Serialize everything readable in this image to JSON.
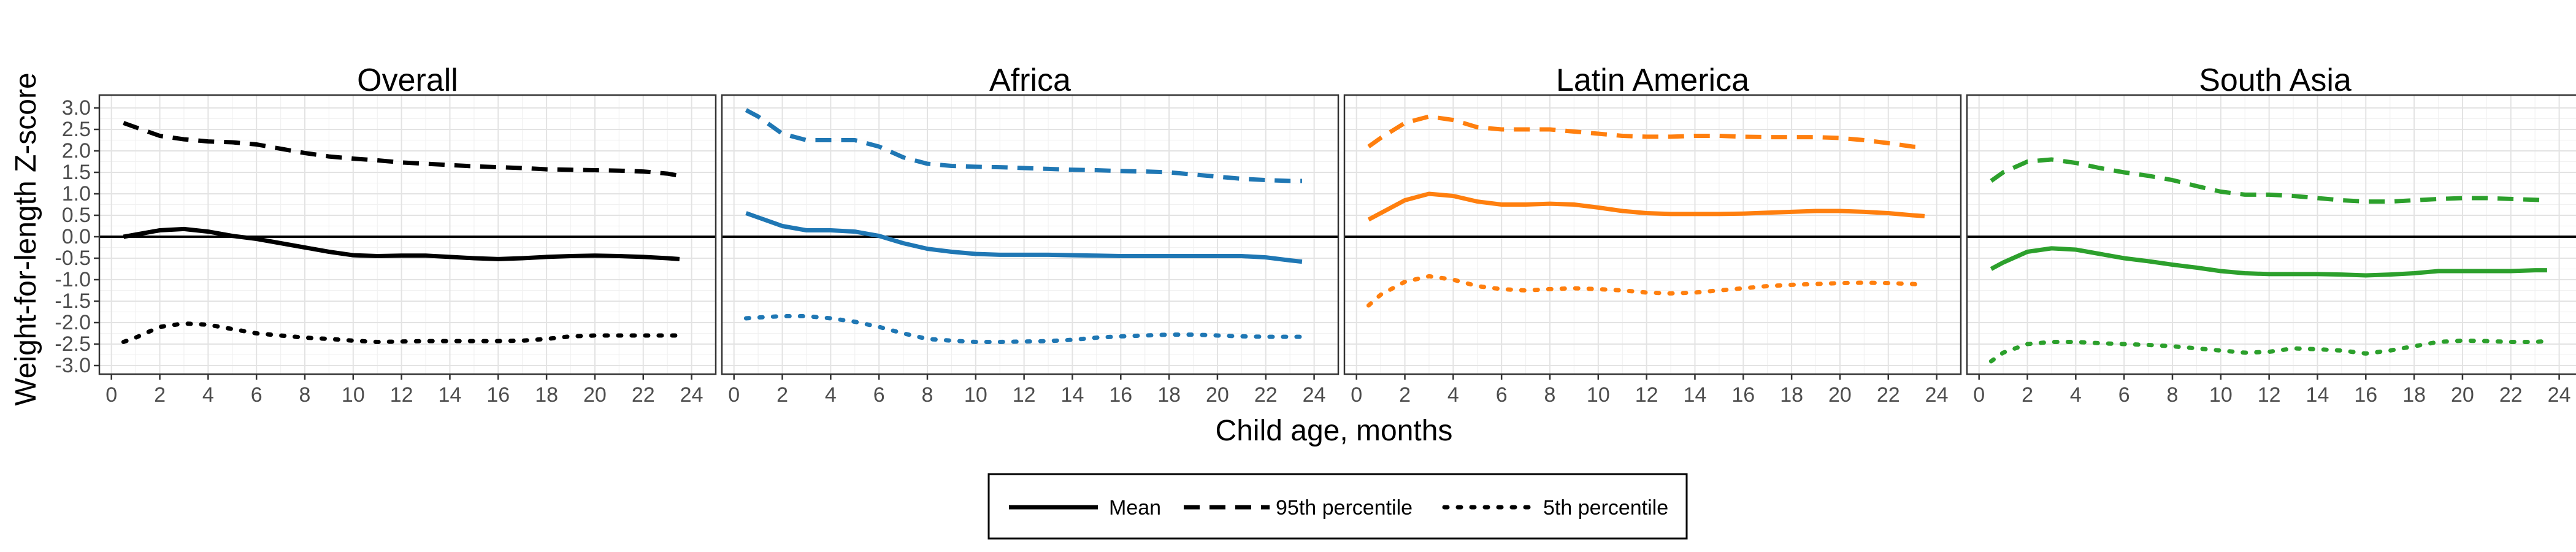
{
  "chart_data": {
    "type": "line",
    "ylabel": "Weight-for-length Z-score",
    "xlabel": "Child age, months",
    "xlim": [
      -0.5,
      25
    ],
    "ylim": [
      -3.2,
      3.3
    ],
    "x_ticks": [
      0,
      2,
      4,
      6,
      8,
      10,
      12,
      14,
      16,
      18,
      20,
      22,
      24
    ],
    "y_ticks": [
      -3.0,
      -2.5,
      -2.0,
      -1.5,
      -1.0,
      -0.5,
      0.0,
      0.5,
      1.0,
      1.5,
      2.0,
      2.5,
      3.0
    ],
    "y_tick_labels": [
      "-3.0",
      "-2.5",
      "-2.0",
      "-1.5",
      "-1.0",
      "-0.5",
      "0.0",
      "0.5",
      "1.0",
      "1.5",
      "2.0",
      "2.5",
      "3.0"
    ],
    "reference_line_y": 0,
    "grid": true,
    "legend_position": "bottom",
    "legend": [
      {
        "label": "Mean",
        "style": "solid"
      },
      {
        "label": "95th percentile",
        "style": "dashed"
      },
      {
        "label": "5th percentile",
        "style": "dotted"
      }
    ],
    "panels": [
      {
        "title": "Overall",
        "color": "#000000",
        "x": [
          0.5,
          1,
          2,
          3,
          4,
          5,
          6,
          7,
          8,
          9,
          10,
          11,
          12,
          13,
          14,
          15,
          16,
          17,
          18,
          19,
          20,
          21,
          22,
          23,
          23.5
        ],
        "series": [
          {
            "name": "Mean",
            "style": "solid",
            "values": [
              0.0,
              0.05,
              0.15,
              0.18,
              0.12,
              0.02,
              -0.05,
              -0.15,
              -0.25,
              -0.35,
              -0.43,
              -0.45,
              -0.44,
              -0.44,
              -0.47,
              -0.5,
              -0.52,
              -0.5,
              -0.47,
              -0.45,
              -0.44,
              -0.45,
              -0.47,
              -0.5,
              -0.52
            ]
          },
          {
            "name": "95th percentile",
            "style": "dashed",
            "values": [
              2.65,
              2.55,
              2.35,
              2.27,
              2.22,
              2.2,
              2.15,
              2.05,
              1.95,
              1.87,
              1.82,
              1.78,
              1.73,
              1.7,
              1.67,
              1.64,
              1.62,
              1.6,
              1.57,
              1.56,
              1.55,
              1.54,
              1.52,
              1.47,
              1.42
            ]
          },
          {
            "name": "5th percentile",
            "style": "dotted",
            "values": [
              -2.45,
              -2.35,
              -2.1,
              -2.02,
              -2.05,
              -2.15,
              -2.25,
              -2.3,
              -2.35,
              -2.38,
              -2.42,
              -2.45,
              -2.44,
              -2.43,
              -2.43,
              -2.43,
              -2.43,
              -2.42,
              -2.38,
              -2.32,
              -2.3,
              -2.3,
              -2.3,
              -2.3,
              -2.3
            ]
          }
        ]
      },
      {
        "title": "Africa",
        "color": "#1f77b4",
        "x": [
          0.5,
          1,
          2,
          3,
          4,
          5,
          6,
          7,
          8,
          9,
          10,
          11,
          12,
          13,
          14,
          15,
          16,
          17,
          18,
          19,
          20,
          21,
          22,
          23,
          23.5
        ],
        "series": [
          {
            "name": "Mean",
            "style": "solid",
            "values": [
              0.55,
              0.45,
              0.25,
              0.15,
              0.15,
              0.12,
              0.02,
              -0.15,
              -0.28,
              -0.35,
              -0.4,
              -0.42,
              -0.42,
              -0.42,
              -0.43,
              -0.44,
              -0.45,
              -0.45,
              -0.45,
              -0.45,
              -0.45,
              -0.45,
              -0.48,
              -0.55,
              -0.58
            ]
          },
          {
            "name": "95th percentile",
            "style": "dashed",
            "values": [
              2.95,
              2.8,
              2.4,
              2.25,
              2.25,
              2.25,
              2.1,
              1.85,
              1.7,
              1.65,
              1.63,
              1.62,
              1.6,
              1.58,
              1.56,
              1.55,
              1.53,
              1.52,
              1.5,
              1.45,
              1.4,
              1.35,
              1.32,
              1.3,
              1.3
            ]
          },
          {
            "name": "5th percentile",
            "style": "dotted",
            "values": [
              -1.9,
              -1.88,
              -1.85,
              -1.85,
              -1.9,
              -1.98,
              -2.1,
              -2.25,
              -2.38,
              -2.42,
              -2.45,
              -2.45,
              -2.44,
              -2.43,
              -2.4,
              -2.35,
              -2.32,
              -2.3,
              -2.28,
              -2.28,
              -2.3,
              -2.32,
              -2.33,
              -2.33,
              -2.33
            ]
          }
        ]
      },
      {
        "title": "Latin America",
        "color": "#ff7f0e",
        "x": [
          0.5,
          1,
          2,
          3,
          4,
          5,
          6,
          7,
          8,
          9,
          10,
          11,
          12,
          13,
          14,
          15,
          16,
          17,
          18,
          19,
          20,
          21,
          22,
          23,
          23.5
        ],
        "series": [
          {
            "name": "Mean",
            "style": "solid",
            "values": [
              0.4,
              0.55,
              0.85,
              1.0,
              0.95,
              0.82,
              0.75,
              0.75,
              0.77,
              0.75,
              0.68,
              0.6,
              0.55,
              0.53,
              0.53,
              0.53,
              0.54,
              0.56,
              0.58,
              0.6,
              0.6,
              0.58,
              0.55,
              0.5,
              0.48
            ]
          },
          {
            "name": "95th percentile",
            "style": "dashed",
            "values": [
              2.1,
              2.3,
              2.65,
              2.8,
              2.72,
              2.55,
              2.5,
              2.5,
              2.5,
              2.45,
              2.4,
              2.35,
              2.33,
              2.33,
              2.35,
              2.35,
              2.33,
              2.32,
              2.32,
              2.32,
              2.3,
              2.25,
              2.18,
              2.1,
              2.08
            ]
          },
          {
            "name": "5th percentile",
            "style": "dotted",
            "values": [
              -1.6,
              -1.35,
              -1.05,
              -0.92,
              -1.0,
              -1.15,
              -1.22,
              -1.25,
              -1.22,
              -1.2,
              -1.22,
              -1.25,
              -1.3,
              -1.32,
              -1.3,
              -1.25,
              -1.2,
              -1.15,
              -1.12,
              -1.1,
              -1.08,
              -1.07,
              -1.08,
              -1.1,
              -1.12
            ]
          }
        ]
      },
      {
        "title": "South Asia",
        "color": "#2ca02c",
        "x": [
          0.5,
          1,
          2,
          3,
          4,
          5,
          6,
          7,
          8,
          9,
          10,
          11,
          12,
          13,
          14,
          15,
          16,
          17,
          18,
          19,
          20,
          21,
          22,
          23,
          23.5
        ],
        "series": [
          {
            "name": "Mean",
            "style": "solid",
            "values": [
              -0.75,
              -0.6,
              -0.35,
              -0.27,
              -0.3,
              -0.4,
              -0.5,
              -0.57,
              -0.65,
              -0.72,
              -0.8,
              -0.85,
              -0.87,
              -0.87,
              -0.87,
              -0.88,
              -0.9,
              -0.88,
              -0.85,
              -0.8,
              -0.8,
              -0.8,
              -0.8,
              -0.78,
              -0.78
            ]
          },
          {
            "name": "95th percentile",
            "style": "dashed",
            "values": [
              1.3,
              1.5,
              1.75,
              1.8,
              1.72,
              1.6,
              1.5,
              1.42,
              1.32,
              1.18,
              1.05,
              0.98,
              0.98,
              0.95,
              0.9,
              0.85,
              0.82,
              0.82,
              0.85,
              0.88,
              0.9,
              0.9,
              0.88,
              0.86,
              0.85
            ]
          },
          {
            "name": "5th percentile",
            "style": "dotted",
            "values": [
              -2.9,
              -2.7,
              -2.5,
              -2.45,
              -2.45,
              -2.48,
              -2.5,
              -2.52,
              -2.55,
              -2.6,
              -2.65,
              -2.7,
              -2.68,
              -2.6,
              -2.62,
              -2.65,
              -2.72,
              -2.65,
              -2.55,
              -2.45,
              -2.42,
              -2.43,
              -2.45,
              -2.45,
              -2.43
            ]
          }
        ]
      }
    ]
  }
}
